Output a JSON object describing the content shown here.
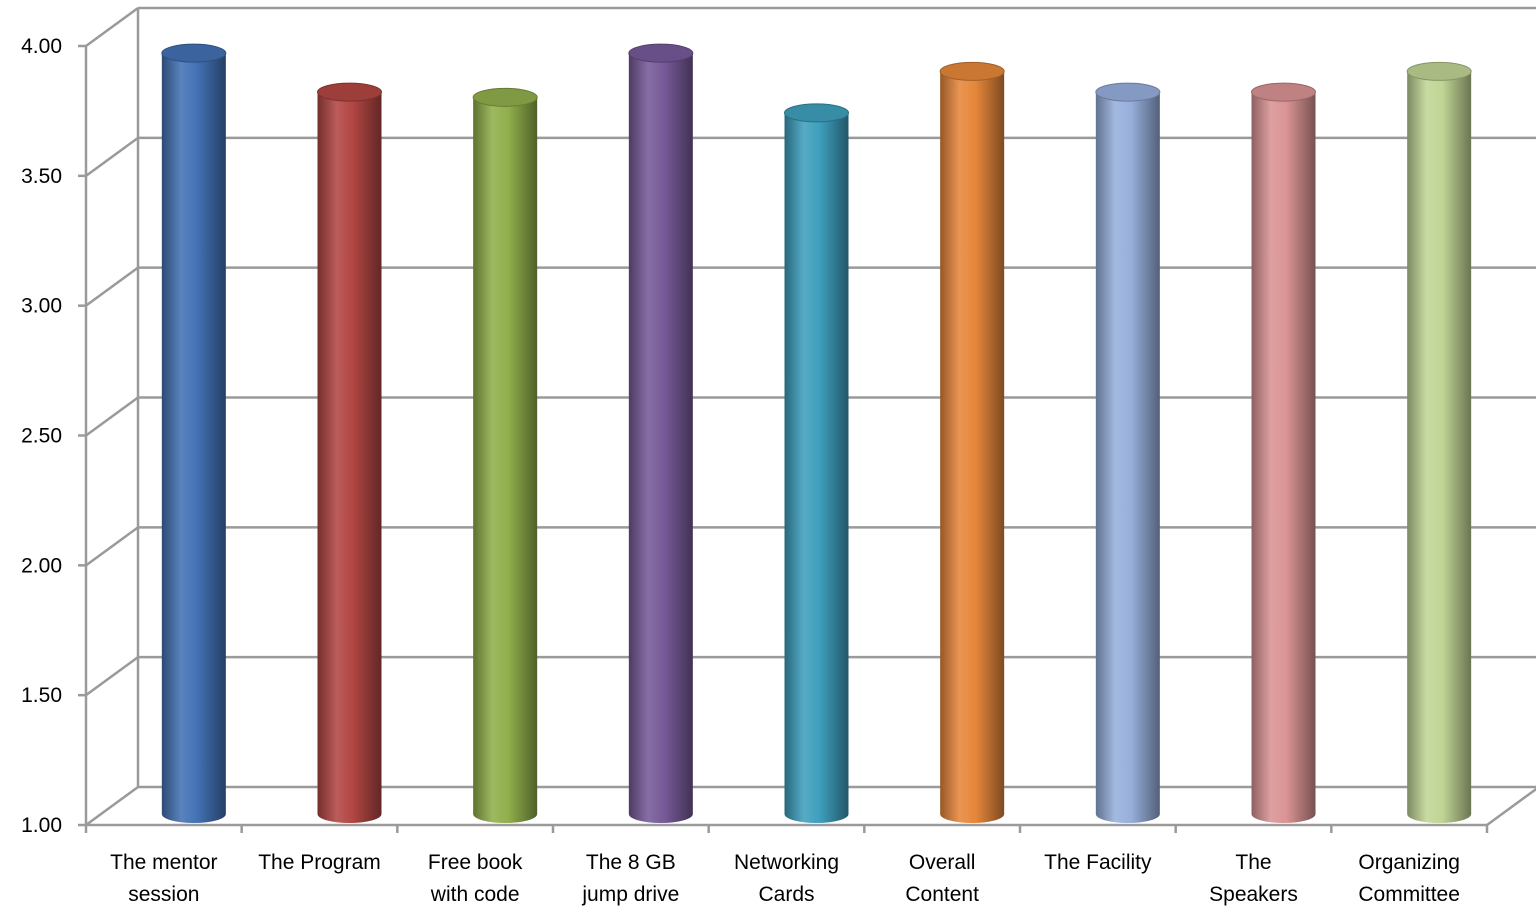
{
  "chart_data": {
    "type": "bar",
    "categories": [
      [
        "The mentor",
        "session"
      ],
      [
        "The Program"
      ],
      [
        "Free book",
        "with code"
      ],
      [
        "The 8 GB",
        "jump drive"
      ],
      [
        "Networking",
        "Cards"
      ],
      [
        "Overall",
        "Content"
      ],
      [
        "The Facility"
      ],
      [
        "The",
        "Speakers"
      ],
      [
        "Organizing",
        "Committee"
      ]
    ],
    "values": [
      3.93,
      3.78,
      3.76,
      3.93,
      3.7,
      3.86,
      3.78,
      3.78,
      3.86
    ],
    "colors": [
      "#4372b5",
      "#b24643",
      "#90af4b",
      "#765a99",
      "#3e9fbd",
      "#e6873b",
      "#97afdc",
      "#d99394",
      "#c0d595"
    ],
    "ylim": [
      1.0,
      4.0
    ],
    "yticks": [
      "1.00",
      "1.50",
      "2.00",
      "2.50",
      "3.00",
      "3.50",
      "4.00"
    ],
    "grid": true,
    "style": "3d-cylinder",
    "title": "",
    "xlabel": "",
    "ylabel": ""
  }
}
